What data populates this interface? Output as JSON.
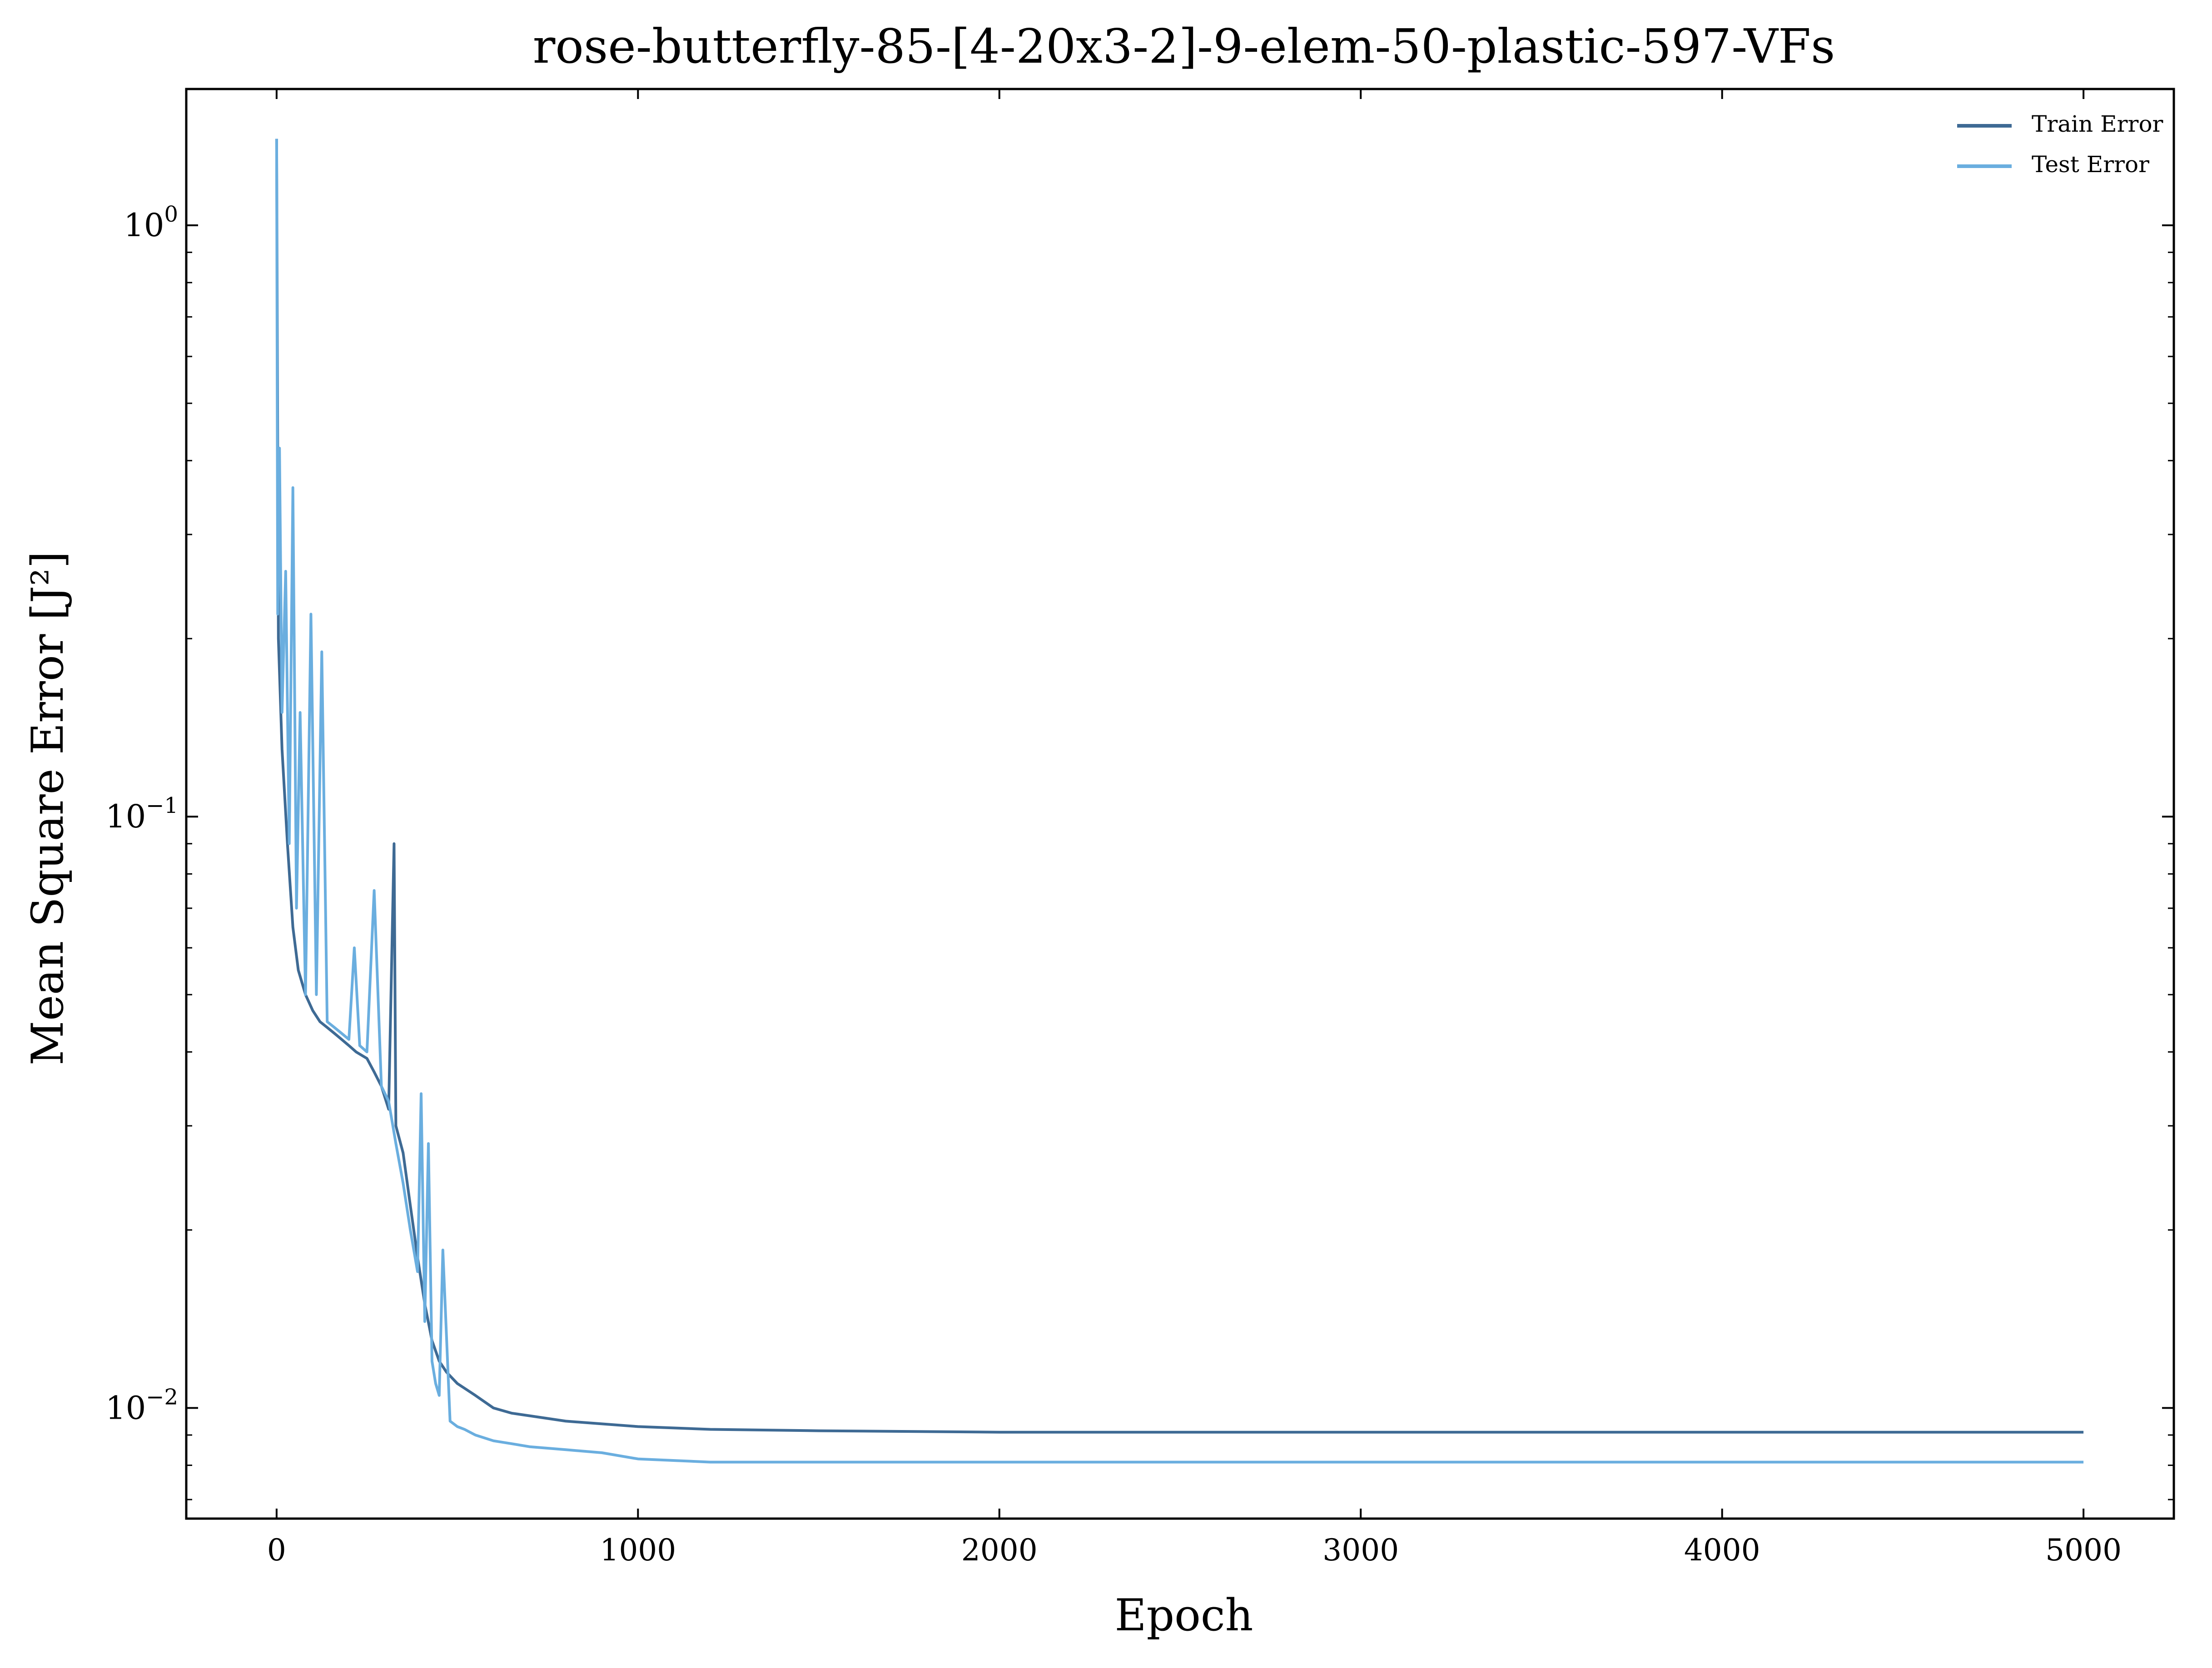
{
  "chart_data": {
    "type": "line",
    "title": "rose-butterfly-85-[4-20x3-2]-9-elem-50-plastic-597-VFs",
    "xlabel": "Epoch",
    "ylabel": "Mean Square Error [J²]",
    "xlim": [
      -250,
      5250
    ],
    "ylim": [
      0.0065,
      1.7
    ],
    "yscale": "log",
    "grid": false,
    "legend": "top-right",
    "xticks": [
      0,
      1000,
      2000,
      3000,
      4000,
      5000
    ],
    "xtick_labels": [
      "0",
      "1000",
      "2000",
      "3000",
      "4000",
      "5000"
    ],
    "yticks": [
      {
        "value": 1,
        "base": "10",
        "exp": "0"
      },
      {
        "value": 0.1,
        "base": "10",
        "exp": "−1"
      },
      {
        "value": 0.01,
        "base": "10",
        "exp": "−2"
      }
    ],
    "series": [
      {
        "name": "Train Error",
        "color": "#3e6a94",
        "x": [
          0,
          5,
          15,
          30,
          45,
          60,
          80,
          100,
          120,
          140,
          160,
          180,
          200,
          220,
          250,
          270,
          290,
          310,
          325,
          330,
          350,
          370,
          390,
          410,
          430,
          450,
          470,
          500,
          550,
          600,
          650,
          700,
          800,
          900,
          1000,
          1200,
          1500,
          2000,
          3000,
          4000,
          5000
        ],
        "y": [
          1.4,
          0.2,
          0.13,
          0.09,
          0.065,
          0.055,
          0.05,
          0.047,
          0.045,
          0.044,
          0.043,
          0.042,
          0.041,
          0.04,
          0.039,
          0.037,
          0.035,
          0.032,
          0.09,
          0.03,
          0.027,
          0.022,
          0.018,
          0.015,
          0.013,
          0.012,
          0.0115,
          0.011,
          0.0105,
          0.01,
          0.0098,
          0.0097,
          0.0095,
          0.0094,
          0.0093,
          0.0092,
          0.00915,
          0.0091,
          0.0091,
          0.0091,
          0.0091
        ]
      },
      {
        "name": "Test Error",
        "color": "#6aaedf",
        "x": [
          0,
          3,
          8,
          15,
          25,
          35,
          45,
          55,
          65,
          80,
          95,
          110,
          125,
          140,
          160,
          180,
          200,
          215,
          230,
          250,
          270,
          290,
          310,
          330,
          350,
          370,
          390,
          400,
          410,
          420,
          430,
          440,
          450,
          460,
          480,
          500,
          520,
          550,
          600,
          650,
          700,
          800,
          900,
          1000,
          1200,
          1500,
          2000,
          3000,
          4000,
          5000
        ],
        "y": [
          1.4,
          0.22,
          0.42,
          0.15,
          0.26,
          0.09,
          0.36,
          0.07,
          0.15,
          0.05,
          0.22,
          0.05,
          0.19,
          0.045,
          0.044,
          0.043,
          0.042,
          0.06,
          0.041,
          0.04,
          0.075,
          0.035,
          0.033,
          0.028,
          0.024,
          0.02,
          0.017,
          0.034,
          0.014,
          0.028,
          0.012,
          0.011,
          0.0105,
          0.0185,
          0.0095,
          0.0093,
          0.0092,
          0.009,
          0.0088,
          0.0087,
          0.0086,
          0.0085,
          0.0084,
          0.0082,
          0.0081,
          0.0081,
          0.0081,
          0.0081,
          0.0081,
          0.0081
        ]
      }
    ]
  }
}
